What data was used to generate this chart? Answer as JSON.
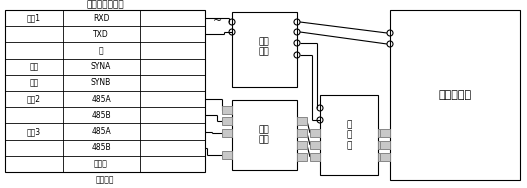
{
  "bg_color": "#ffffff",
  "lc": "#000000",
  "gc": "#888888",
  "fig_width": 5.27,
  "fig_height": 1.88,
  "dpi": 100,
  "title": "变电站智能设备",
  "subtitle": "通讯接口",
  "row_labels": [
    [
      "串口1",
      "RXD"
    ],
    [
      "",
      "TXD"
    ],
    [
      "",
      "地"
    ],
    [
      "时钟",
      "SYNA"
    ],
    [
      "同步",
      "SYNB"
    ],
    [
      "串口2",
      "485A"
    ],
    [
      "",
      "485B"
    ],
    [
      "串口3",
      "485A"
    ],
    [
      "",
      "485B"
    ],
    [
      "",
      "通讯地"
    ]
  ],
  "power_label": "电源\n模块",
  "comm_label": "通讯\n接口",
  "mcu_label": "单\n片\n机",
  "lcd_label": "液晶显示屏",
  "ac_symbol": "~"
}
